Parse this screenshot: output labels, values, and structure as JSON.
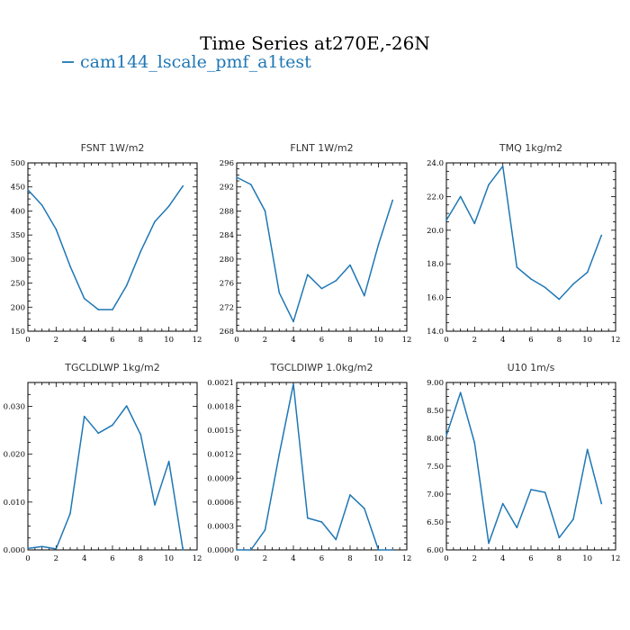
{
  "figure": {
    "title": "Time Series at270E,-26N",
    "legend_label": "cam144_lscale_pmf_a1test",
    "line_color": "#1f77b4"
  },
  "chart_data": [
    {
      "type": "line",
      "title": "FSNT  1W/m2",
      "xlim": [
        0,
        12
      ],
      "ylim": [
        150,
        500
      ],
      "xticks": [
        0,
        2,
        4,
        6,
        8,
        10,
        12
      ],
      "yticks": [
        150,
        200,
        250,
        300,
        350,
        400,
        450,
        500
      ],
      "ytick_labels": [
        "150",
        "200",
        "250",
        "300",
        "350",
        "400",
        "450",
        "500"
      ],
      "x": [
        0,
        1,
        2,
        3,
        4,
        5,
        6,
        7,
        8,
        9,
        10,
        11
      ],
      "values": [
        444,
        412,
        362,
        285,
        218,
        195,
        195,
        245,
        316,
        378,
        410,
        452
      ]
    },
    {
      "type": "line",
      "title": "FLNT  1W/m2",
      "xlim": [
        0,
        12
      ],
      "ylim": [
        268,
        296
      ],
      "xticks": [
        0,
        2,
        4,
        6,
        8,
        10,
        12
      ],
      "yticks": [
        268,
        272,
        276,
        280,
        284,
        288,
        292,
        296
      ],
      "ytick_labels": [
        "268",
        "272",
        "276",
        "280",
        "284",
        "288",
        "292",
        "296"
      ],
      "x": [
        0,
        1,
        2,
        3,
        4,
        5,
        6,
        7,
        8,
        9,
        10,
        11
      ],
      "values": [
        293.6,
        292.4,
        288.0,
        274.4,
        269.6,
        277.4,
        275.1,
        276.4,
        279.0,
        273.9,
        282.4,
        289.8
      ]
    },
    {
      "type": "line",
      "title": "TMQ  1kg/m2",
      "xlim": [
        0,
        12
      ],
      "ylim": [
        14,
        24
      ],
      "xticks": [
        0,
        2,
        4,
        6,
        8,
        10,
        12
      ],
      "yticks": [
        14,
        16,
        18,
        20,
        22,
        24
      ],
      "ytick_labels": [
        "14.0",
        "16.0",
        "18.0",
        "20.0",
        "22.0",
        "24.0"
      ],
      "x": [
        0,
        1,
        2,
        3,
        4,
        5,
        6,
        7,
        8,
        9,
        10,
        11
      ],
      "values": [
        20.6,
        22.0,
        20.4,
        22.7,
        23.8,
        17.8,
        17.1,
        16.6,
        15.9,
        16.8,
        17.5,
        19.7
      ]
    },
    {
      "type": "line",
      "title": "TGCLDLWP  1kg/m2",
      "xlim": [
        0,
        12
      ],
      "ylim": [
        0,
        0.035
      ],
      "xticks": [
        0,
        2,
        4,
        6,
        8,
        10,
        12
      ],
      "yticks": [
        0,
        0.01,
        0.02,
        0.03
      ],
      "ytick_labels": [
        "0.000",
        "0.010",
        "0.020",
        "0.030"
      ],
      "x": [
        0,
        1,
        2,
        3,
        4,
        5,
        6,
        7,
        8,
        9,
        10,
        11
      ],
      "values": [
        0.0003,
        0.0007,
        0.0002,
        0.0076,
        0.0279,
        0.0244,
        0.0261,
        0.0301,
        0.0241,
        0.0094,
        0.0185,
        0.0
      ]
    },
    {
      "type": "line",
      "title": "TGCLDIWP  1.0kg/m2",
      "xlim": [
        0,
        12
      ],
      "ylim": [
        0,
        0.0021
      ],
      "xticks": [
        0,
        2,
        4,
        6,
        8,
        10,
        12
      ],
      "yticks": [
        0,
        0.0003,
        0.0006,
        0.0009,
        0.0012,
        0.0015,
        0.0018,
        0.0021
      ],
      "ytick_labels": [
        "0.0000",
        "0.0003",
        "0.0006",
        "0.0009",
        "0.0012",
        "0.0015",
        "0.0018",
        "0.0021"
      ],
      "x": [
        0,
        1,
        2,
        3,
        4,
        5,
        6,
        7,
        8,
        9,
        10,
        11
      ],
      "values": [
        0.0,
        0.0,
        0.00025,
        0.0012,
        0.00208,
        0.0004,
        0.00035,
        0.00013,
        0.00069,
        0.00052,
        0.0,
        0.0
      ]
    },
    {
      "type": "line",
      "title": "U10  1m/s",
      "xlim": [
        0,
        12
      ],
      "ylim": [
        6,
        9
      ],
      "xticks": [
        0,
        2,
        4,
        6,
        8,
        10,
        12
      ],
      "yticks": [
        6,
        6.5,
        7,
        7.5,
        8,
        8.5,
        9
      ],
      "ytick_labels": [
        "6.00",
        "6.50",
        "7.00",
        "7.50",
        "8.00",
        "8.50",
        "9.00"
      ],
      "x": [
        0,
        1,
        2,
        3,
        4,
        5,
        6,
        7,
        8,
        9,
        10,
        11
      ],
      "values": [
        8.05,
        8.82,
        7.92,
        6.12,
        6.83,
        6.4,
        7.08,
        7.03,
        6.22,
        6.55,
        7.8,
        6.83
      ]
    }
  ]
}
